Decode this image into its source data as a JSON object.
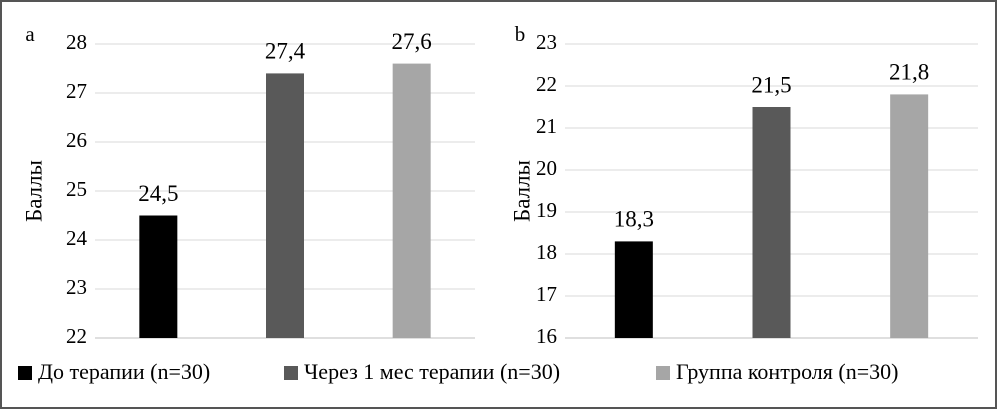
{
  "chart_data": [
    {
      "type": "bar",
      "label": "a",
      "ylabel": "Баллы",
      "ylim": [
        22,
        28
      ],
      "yticks": [
        22,
        23,
        24,
        25,
        26,
        27,
        28
      ],
      "grid": true,
      "series": [
        {
          "name": "До терапии (n=30)",
          "color": "#000000",
          "values": [
            24.5
          ],
          "value_labels": [
            "24,5"
          ]
        },
        {
          "name": "Через 1 мес терапии (n=30)",
          "color": "#595959",
          "values": [
            27.4
          ],
          "value_labels": [
            "27,4"
          ]
        },
        {
          "name": "Группа контроля (n=30)",
          "color": "#a6a6a6",
          "values": [
            27.6
          ],
          "value_labels": [
            "27,6"
          ]
        }
      ]
    },
    {
      "type": "bar",
      "label": "b",
      "ylabel": "Баллы",
      "ylim": [
        16,
        23
      ],
      "yticks": [
        16,
        17,
        18,
        19,
        20,
        21,
        22,
        23
      ],
      "grid": true,
      "series": [
        {
          "name": "До терапии (n=30)",
          "color": "#000000",
          "values": [
            18.3
          ],
          "value_labels": [
            "18,3"
          ]
        },
        {
          "name": "Через 1 мес терапии (n=30)",
          "color": "#595959",
          "values": [
            21.5
          ],
          "value_labels": [
            "21,5"
          ]
        },
        {
          "name": "Группа контроля (n=30)",
          "color": "#a6a6a6",
          "values": [
            21.8
          ],
          "value_labels": [
            "21,8"
          ]
        }
      ]
    }
  ]
}
